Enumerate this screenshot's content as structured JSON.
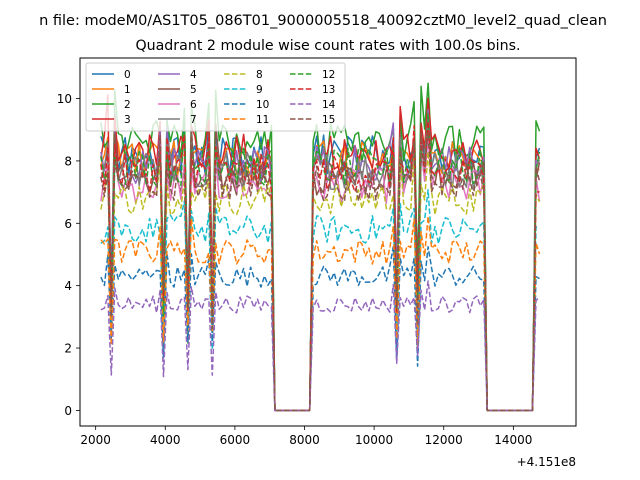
{
  "chart_data": {
    "type": "line",
    "suptitle": "n file: modeM0/AS1T05_086T01_9000005518_40092cztM0_level2_quad_clean",
    "title": "Quadrant 2 module wise count rates with 100.0s bins.",
    "xlabel": "",
    "ylabel": "",
    "x_offset_label": "+4.151e8",
    "xlim": [
      1550,
      15800
    ],
    "ylim": [
      -0.5,
      11.3
    ],
    "x_ticks": [
      2000,
      4000,
      6000,
      8000,
      10000,
      12000,
      14000
    ],
    "y_ticks": [
      0,
      2,
      4,
      6,
      8,
      10
    ],
    "x_tick_labels": [
      "2000",
      "4000",
      "6000",
      "8000",
      "10000",
      "12000",
      "14000"
    ],
    "y_tick_labels": [
      "0",
      "2",
      "4",
      "6",
      "8",
      "10"
    ],
    "grid": false,
    "legend_position": "top-left",
    "legend_columns": 4,
    "segments": [
      {
        "x_start": 2150,
        "x_end": 7050,
        "bin": 100,
        "dips": [
          2450,
          3950,
          4650,
          5350
        ]
      },
      {
        "x_start": 8250,
        "x_end": 13150,
        "bin": 100,
        "dips": [
          10650,
          11250
        ]
      },
      {
        "x_start": 14650,
        "x_end": 14750,
        "bin": 100,
        "dips": []
      }
    ],
    "zero_intervals": [
      [
        7150,
        8150
      ],
      [
        13250,
        14550
      ]
    ],
    "series": [
      {
        "name": "0",
        "color": "#1f77b4",
        "dash": "solid",
        "level": 8.2
      },
      {
        "name": "1",
        "color": "#ff7f0e",
        "dash": "solid",
        "level": 8.0
      },
      {
        "name": "2",
        "color": "#2ca02c",
        "dash": "solid",
        "level": 8.6
      },
      {
        "name": "3",
        "color": "#d62728",
        "dash": "solid",
        "level": 8.2
      },
      {
        "name": "4",
        "color": "#9467bd",
        "dash": "solid",
        "level": 7.9
      },
      {
        "name": "5",
        "color": "#8c564b",
        "dash": "solid",
        "level": 7.5
      },
      {
        "name": "6",
        "color": "#e377c2",
        "dash": "solid",
        "level": 7.2
      },
      {
        "name": "7",
        "color": "#7f7f7f",
        "dash": "solid",
        "level": 7.7
      },
      {
        "name": "8",
        "color": "#bcbd22",
        "dash": "dashed",
        "level": 6.8
      },
      {
        "name": "9",
        "color": "#17becf",
        "dash": "dashed",
        "level": 5.8
      },
      {
        "name": "10",
        "color": "#1f77b4",
        "dash": "dashed",
        "level": 4.3
      },
      {
        "name": "11",
        "color": "#ff7f0e",
        "dash": "dashed",
        "level": 5.1
      },
      {
        "name": "12",
        "color": "#2ca02c",
        "dash": "dashed",
        "level": 7.8
      },
      {
        "name": "13",
        "color": "#d62728",
        "dash": "dashed",
        "level": 7.6
      },
      {
        "name": "14",
        "color": "#9467bd",
        "dash": "dashed",
        "level": 3.4
      },
      {
        "name": "15",
        "color": "#8c564b",
        "dash": "dashed",
        "level": 7.3
      }
    ]
  }
}
